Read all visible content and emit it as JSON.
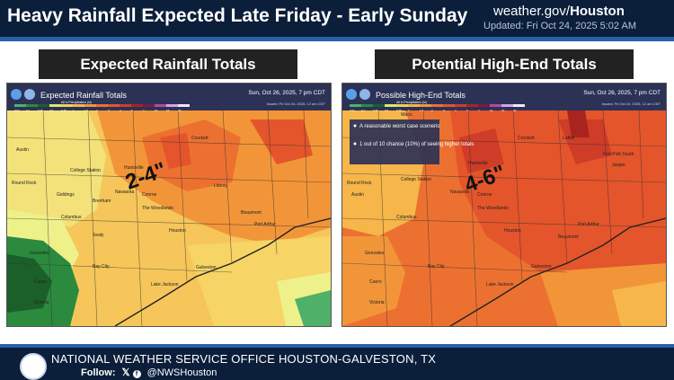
{
  "header": {
    "title": "Heavy Rainfall Expected Late Friday - Early Sunday",
    "site_prefix": "weather.gov/",
    "site_bold": "Houston",
    "updated": "Updated: Fri Oct 24, 2025 5:02 AM"
  },
  "left_panel": {
    "heading": "Expected Rainfall Totals",
    "map_title": "Expected Rainfall Totals",
    "map_valid": "Sun, Oct 26, 2025, 7 pm CDT",
    "map_issued": "Issued: Fri Oct 24, 2025, 12 am CDT",
    "legend_label": "All in Precipitation (in)",
    "callout": "2-4\"",
    "cities": [
      "Austin",
      "College Station",
      "Navasota",
      "Conroe",
      "The Woodlands",
      "Houston",
      "Beaumont",
      "Port Arthur",
      "Galveston",
      "Victoria",
      "Cuero",
      "Gonzales",
      "Columbus",
      "Lake Jackson",
      "Huntsville",
      "Crockett",
      "Round Rock",
      "Giddings",
      "Brenham",
      "Bay City",
      "Sealy",
      "Liberty"
    ]
  },
  "right_panel": {
    "heading": "Potential High-End Totals",
    "map_title": "Possible High-End Totals",
    "map_valid": "Sun, Oct 26, 2025, 7 pm CDT",
    "map_issued": "Issued: Fri Oct 24, 2025, 12 am CDT",
    "legend_label": "All in Precipitation (in)",
    "callout": "4-6\"",
    "notes": [
      "A reasonable worst case scenerio",
      "1 out of 10 chance (10%) of seeing higher totals"
    ],
    "cities": [
      "Waco",
      "Crockett",
      "Lufkin",
      "Fort Polk South",
      "Jasper",
      "Huntsville",
      "College Station",
      "Navasota",
      "Conroe",
      "The Woodlands",
      "Houston",
      "Beaumont",
      "Port Arthur",
      "Galveston",
      "Lake Jackson",
      "Austin",
      "Round Rock",
      "Gonzales",
      "Cuero",
      "Victoria",
      "Columbus",
      "Bay City"
    ]
  },
  "legend_ticks": [
    "0.01",
    "0.1",
    "0.25",
    "0.5",
    "0.75",
    "1",
    "1.5",
    "2",
    "3",
    "4",
    "5",
    "7",
    "10",
    "15",
    "20"
  ],
  "legend_colors": [
    "#4fb06a",
    "#2c8a3e",
    "#1b5f2a",
    "#d9e96c",
    "#f0d255",
    "#f6b64a",
    "#f29539",
    "#ec7130",
    "#e4552b",
    "#cf3c28",
    "#a8241f",
    "#7e1a46",
    "#b24aa0",
    "#d4a2e8",
    "#f3e6f9"
  ],
  "footer": {
    "office": "NATIONAL WEATHER SERVICE OFFICE HOUSTON-GALVESTON, TX",
    "follow_label": "Follow:",
    "handle": "@NWSHouston"
  }
}
